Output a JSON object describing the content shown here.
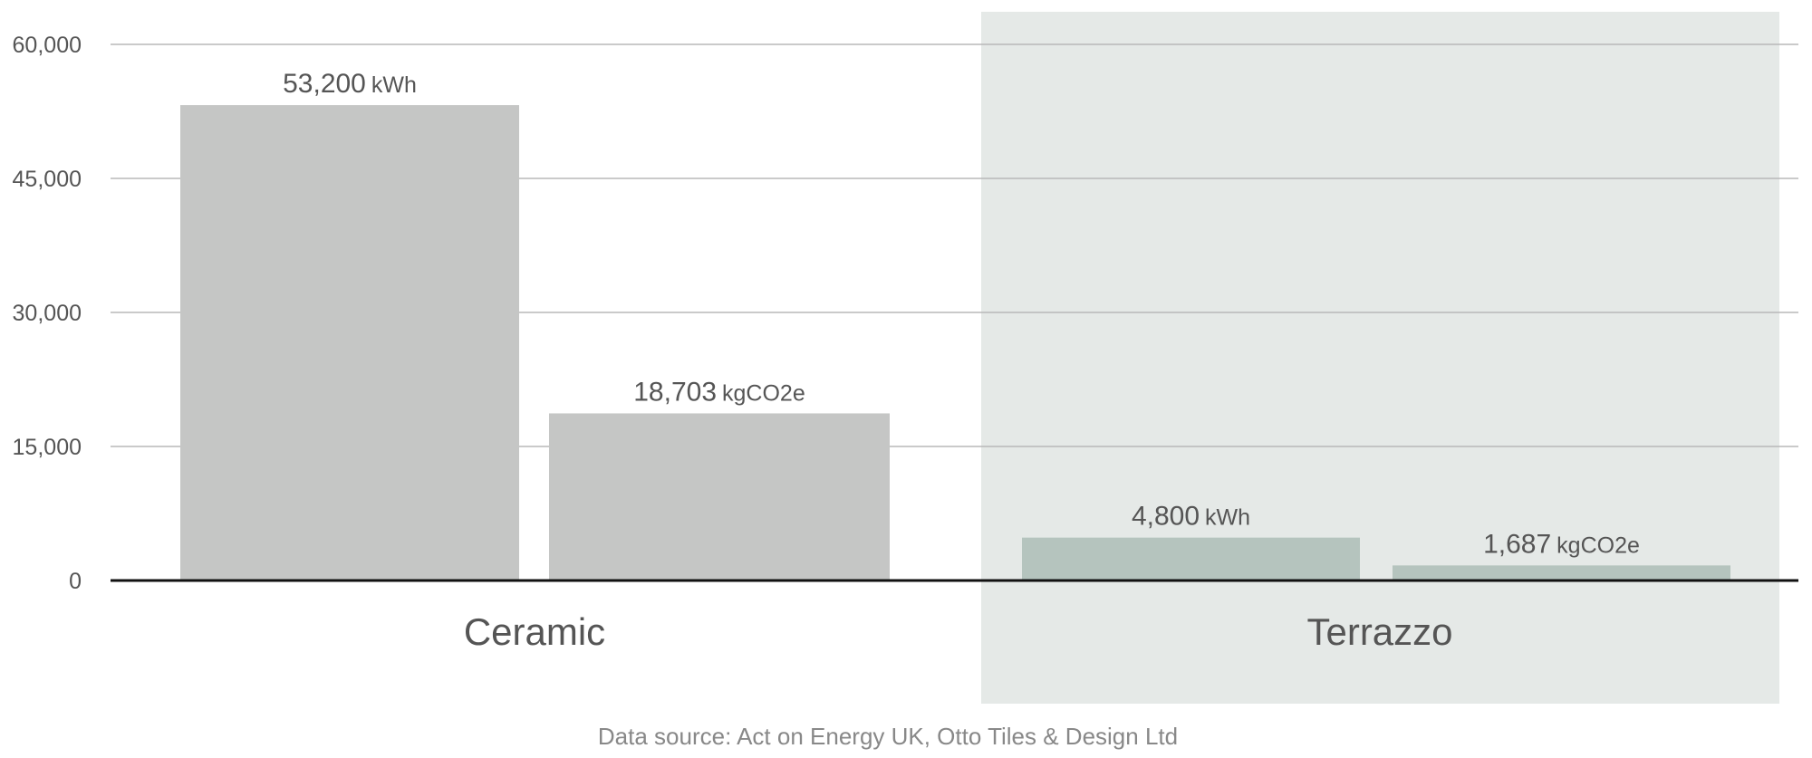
{
  "chart_data": {
    "type": "bar",
    "categories": [
      "Ceramic",
      "Terrazzo"
    ],
    "series": [
      {
        "name": "kWh",
        "values": [
          53200,
          4800
        ],
        "value_labels": [
          "53,200",
          "4,800"
        ]
      },
      {
        "name": "kgCO2e",
        "values": [
          18703,
          1687
        ],
        "value_labels": [
          "18,703",
          "1,687"
        ]
      }
    ],
    "category_colors": [
      "#c5c6c5",
      "#b5c4be"
    ],
    "highlight_color": "#e5e9e7",
    "highlight_index": 1,
    "ylim": [
      0,
      60000
    ],
    "yticks": [
      0,
      {
        "value": 15000,
        "label": "15,000"
      },
      {
        "value": 30000,
        "label": "30,000"
      },
      {
        "value": 45000,
        "label": "45,000"
      },
      {
        "value": 60000,
        "label": "60,000"
      }
    ],
    "grid": true,
    "note": "Data source: Act on Energy UK, Otto Tiles & Design Ltd"
  }
}
